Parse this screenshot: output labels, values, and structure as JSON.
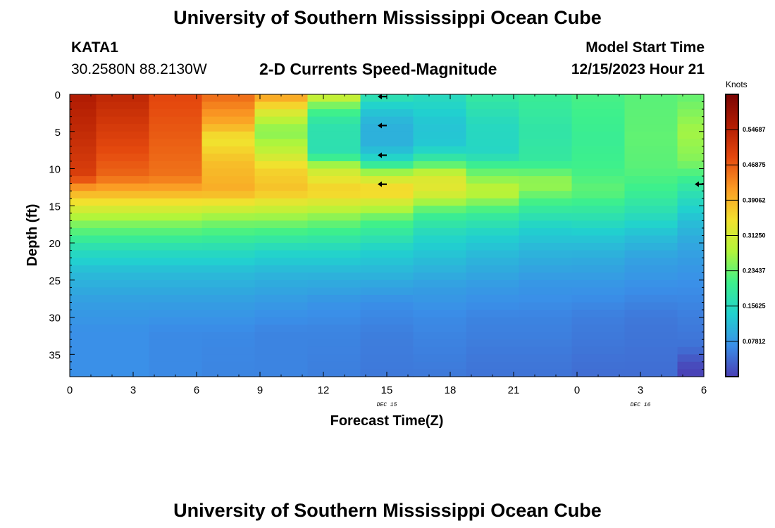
{
  "page": {
    "title_top": "University of Southern Mississippi Ocean Cube",
    "title_bottom": "University of Southern Mississippi Ocean Cube",
    "station": "KATA1",
    "coords": "30.2580N  88.2130W",
    "chart_title": "2-D Currents Speed-Magnitude",
    "model_label": "Model Start Time",
    "model_time": "12/15/2023 Hour 21"
  },
  "colors": {
    "background": "#ffffff",
    "colormap": [
      "#4a3fb5",
      "#3a8fe8",
      "#21d1cf",
      "#3df08c",
      "#b2f53a",
      "#f2e12e",
      "#fb9b24",
      "#e4480e",
      "#b21d03",
      "#7a0403"
    ]
  },
  "chart_data": {
    "type": "heatmap",
    "title": "2-D Currents Speed-Magnitude",
    "xlabel": "Forecast Time(Z)",
    "ylabel": "Depth (ft)",
    "x_tick_labels": [
      "0",
      "3",
      "6",
      "9",
      "12",
      "15",
      "18",
      "21",
      "0",
      "3",
      "6"
    ],
    "x_date_labels": [
      {
        "label": "DEC 15",
        "at_hour": 15
      },
      {
        "label": "DEC 16",
        "at_hour": 27
      }
    ],
    "x_range_hours": [
      0,
      30
    ],
    "y_ticks": [
      0,
      5,
      10,
      15,
      20,
      25,
      30,
      35
    ],
    "y_range_ft": [
      0,
      38
    ],
    "colorbar": {
      "title": "Knots",
      "range": [
        0.0,
        0.625
      ],
      "tick_values": [
        0.0781,
        0.1563,
        0.2344,
        0.3125,
        0.3906,
        0.4688,
        0.5469
      ],
      "tick_labels": [
        "0.07812",
        "0.15625",
        "0.23437",
        "0.31250",
        "0.39062",
        "0.46875",
        "0.54687"
      ]
    },
    "time_columns_start_hours": [
      0,
      1.25,
      3.75,
      6.25,
      8.75,
      11.25,
      13.75,
      16.25,
      18.75,
      21.25,
      23.75,
      26.25,
      28.75
    ],
    "time_columns_end_hours": [
      1.25,
      3.75,
      6.25,
      8.75,
      11.25,
      13.75,
      16.25,
      18.75,
      21.25,
      23.75,
      26.25,
      28.75,
      30
    ],
    "depth_bin_ft": 1,
    "speed_knots_profiles": [
      {
        "nodes": [
          [
            0,
            0.56
          ],
          [
            11,
            0.5
          ],
          [
            13,
            0.4
          ],
          [
            17,
            0.26
          ],
          [
            21,
            0.16
          ],
          [
            24,
            0.115
          ],
          [
            28,
            0.085
          ],
          [
            32,
            0.07
          ],
          [
            38,
            0.07
          ]
        ]
      },
      {
        "nodes": [
          [
            0,
            0.54
          ],
          [
            11,
            0.46
          ],
          [
            13,
            0.4
          ],
          [
            17,
            0.26
          ],
          [
            21,
            0.16
          ],
          [
            24,
            0.115
          ],
          [
            28,
            0.085
          ],
          [
            32,
            0.07
          ],
          [
            38,
            0.07
          ]
        ]
      },
      {
        "nodes": [
          [
            0,
            0.49
          ],
          [
            11,
            0.45
          ],
          [
            13,
            0.4
          ],
          [
            17,
            0.26
          ],
          [
            21,
            0.16
          ],
          [
            24,
            0.115
          ],
          [
            28,
            0.085
          ],
          [
            32,
            0.065
          ],
          [
            38,
            0.065
          ]
        ]
      },
      {
        "nodes": [
          [
            0,
            0.46
          ],
          [
            4,
            0.4
          ],
          [
            6,
            0.34
          ],
          [
            9,
            0.38
          ],
          [
            13,
            0.4
          ],
          [
            17,
            0.25
          ],
          [
            21,
            0.16
          ],
          [
            24,
            0.115
          ],
          [
            28,
            0.085
          ],
          [
            32,
            0.065
          ],
          [
            38,
            0.06
          ]
        ]
      },
      {
        "nodes": [
          [
            0,
            0.42
          ],
          [
            3,
            0.3
          ],
          [
            5,
            0.25
          ],
          [
            8,
            0.3
          ],
          [
            10,
            0.36
          ],
          [
            13,
            0.38
          ],
          [
            17,
            0.25
          ],
          [
            21,
            0.15
          ],
          [
            24,
            0.11
          ],
          [
            28,
            0.08
          ],
          [
            32,
            0.06
          ],
          [
            38,
            0.06
          ]
        ]
      },
      {
        "nodes": [
          [
            0,
            0.32
          ],
          [
            2,
            0.22
          ],
          [
            4,
            0.175
          ],
          [
            8,
            0.17
          ],
          [
            10,
            0.3
          ],
          [
            13,
            0.37
          ],
          [
            17,
            0.24
          ],
          [
            21,
            0.15
          ],
          [
            24,
            0.11
          ],
          [
            28,
            0.075
          ],
          [
            32,
            0.06
          ],
          [
            38,
            0.055
          ]
        ]
      },
      {
        "nodes": [
          [
            0,
            0.18
          ],
          [
            2,
            0.13
          ],
          [
            4,
            0.105
          ],
          [
            7,
            0.105
          ],
          [
            9,
            0.16
          ],
          [
            11,
            0.3
          ],
          [
            13,
            0.37
          ],
          [
            17,
            0.22
          ],
          [
            21,
            0.14
          ],
          [
            24,
            0.11
          ],
          [
            28,
            0.07
          ],
          [
            32,
            0.055
          ],
          [
            38,
            0.05
          ]
        ]
      },
      {
        "nodes": [
          [
            0,
            0.16
          ],
          [
            4,
            0.125
          ],
          [
            7,
            0.13
          ],
          [
            9,
            0.2
          ],
          [
            11,
            0.32
          ],
          [
            13,
            0.33
          ],
          [
            16,
            0.21
          ],
          [
            19,
            0.15
          ],
          [
            22,
            0.12
          ],
          [
            26,
            0.085
          ],
          [
            30,
            0.065
          ],
          [
            38,
            0.05
          ]
        ]
      },
      {
        "nodes": [
          [
            0,
            0.19
          ],
          [
            4,
            0.155
          ],
          [
            8,
            0.15
          ],
          [
            10,
            0.22
          ],
          [
            13,
            0.3
          ],
          [
            16,
            0.2
          ],
          [
            19,
            0.14
          ],
          [
            22,
            0.11
          ],
          [
            26,
            0.08
          ],
          [
            30,
            0.06
          ],
          [
            38,
            0.045
          ]
        ]
      },
      {
        "nodes": [
          [
            0,
            0.2
          ],
          [
            5,
            0.18
          ],
          [
            9,
            0.19
          ],
          [
            12,
            0.27
          ],
          [
            15,
            0.2
          ],
          [
            18,
            0.14
          ],
          [
            21,
            0.11
          ],
          [
            25,
            0.08
          ],
          [
            30,
            0.06
          ],
          [
            38,
            0.045
          ]
        ]
      },
      {
        "nodes": [
          [
            0,
            0.215
          ],
          [
            6,
            0.2
          ],
          [
            10,
            0.21
          ],
          [
            13,
            0.23
          ],
          [
            16,
            0.18
          ],
          [
            19,
            0.13
          ],
          [
            22,
            0.1
          ],
          [
            26,
            0.075
          ],
          [
            30,
            0.055
          ],
          [
            38,
            0.04
          ]
        ]
      },
      {
        "nodes": [
          [
            0,
            0.225
          ],
          [
            6,
            0.23
          ],
          [
            10,
            0.225
          ],
          [
            13,
            0.205
          ],
          [
            16,
            0.165
          ],
          [
            19,
            0.12
          ],
          [
            22,
            0.09
          ],
          [
            26,
            0.07
          ],
          [
            30,
            0.05
          ],
          [
            38,
            0.04
          ]
        ]
      },
      {
        "nodes": [
          [
            0,
            0.23
          ],
          [
            5,
            0.27
          ],
          [
            9,
            0.25
          ],
          [
            11,
            0.21
          ],
          [
            14,
            0.16
          ],
          [
            17,
            0.12
          ],
          [
            20,
            0.095
          ],
          [
            24,
            0.075
          ],
          [
            30,
            0.055
          ],
          [
            34,
            0.045
          ],
          [
            35,
            0.03
          ],
          [
            36.5,
            0.01
          ],
          [
            38,
            0.0
          ]
        ]
      }
    ],
    "direction_arrows": [
      {
        "hour": 14.8,
        "depth_ft": 0.3,
        "direction": "west"
      },
      {
        "hour": 14.8,
        "depth_ft": 4.2,
        "direction": "west"
      },
      {
        "hour": 14.8,
        "depth_ft": 8.2,
        "direction": "west"
      },
      {
        "hour": 14.8,
        "depth_ft": 12.1,
        "direction": "west"
      },
      {
        "hour": 29.8,
        "depth_ft": 12.1,
        "direction": "west"
      }
    ]
  }
}
